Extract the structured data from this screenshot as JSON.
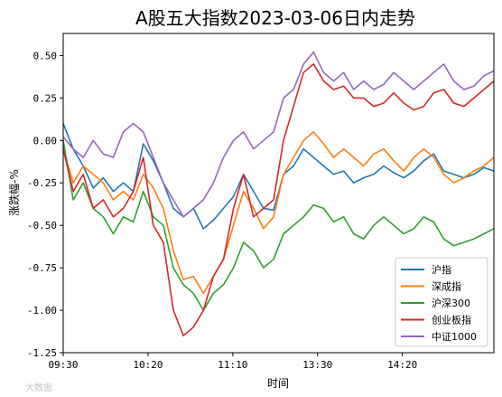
{
  "chart_data": {
    "type": "line",
    "title": "A股五大指数2023-03-06日内走势",
    "xlabel": "时间",
    "ylabel": "涨跌幅-%",
    "x_ticks": [
      "09:30",
      "10:20",
      "11:10",
      "13:30",
      "14:20"
    ],
    "y_ticks": [
      "0.50",
      "0.25",
      "0.00",
      "-0.25",
      "-0.50",
      "-0.75",
      "-1.00",
      "-1.25"
    ],
    "ylim": [
      -1.25,
      0.63
    ],
    "grid": false,
    "legend_position": "lower-right",
    "watermark": "大数据",
    "series": [
      {
        "name": "沪指",
        "color": "#1f77b4",
        "values": [
          0.1,
          -0.05,
          -0.15,
          -0.28,
          -0.22,
          -0.3,
          -0.25,
          -0.3,
          -0.02,
          -0.12,
          -0.25,
          -0.4,
          -0.45,
          -0.4,
          -0.52,
          -0.47,
          -0.4,
          -0.33,
          -0.2,
          -0.3,
          -0.4,
          -0.41,
          -0.2,
          -0.15,
          -0.05,
          -0.1,
          -0.15,
          -0.2,
          -0.18,
          -0.25,
          -0.22,
          -0.2,
          -0.15,
          -0.19,
          -0.22,
          -0.18,
          -0.12,
          -0.08,
          -0.18,
          -0.2,
          -0.22,
          -0.2,
          -0.16,
          -0.18
        ]
      },
      {
        "name": "深成指",
        "color": "#ff7f0e",
        "values": [
          -0.05,
          -0.25,
          -0.15,
          -0.2,
          -0.25,
          -0.35,
          -0.3,
          -0.35,
          -0.2,
          -0.28,
          -0.4,
          -0.65,
          -0.82,
          -0.8,
          -0.9,
          -0.8,
          -0.7,
          -0.5,
          -0.3,
          -0.4,
          -0.52,
          -0.45,
          -0.2,
          -0.1,
          0.0,
          0.05,
          -0.02,
          -0.1,
          -0.05,
          -0.1,
          -0.15,
          -0.08,
          -0.05,
          -0.12,
          -0.18,
          -0.1,
          -0.05,
          -0.1,
          -0.2,
          -0.25,
          -0.22,
          -0.18,
          -0.15,
          -0.1
        ]
      },
      {
        "name": "沪深300",
        "color": "#2ca02c",
        "values": [
          0.0,
          -0.35,
          -0.25,
          -0.4,
          -0.45,
          -0.55,
          -0.45,
          -0.48,
          -0.3,
          -0.45,
          -0.5,
          -0.75,
          -0.85,
          -0.9,
          -1.0,
          -0.9,
          -0.85,
          -0.75,
          -0.6,
          -0.65,
          -0.75,
          -0.7,
          -0.55,
          -0.5,
          -0.45,
          -0.38,
          -0.4,
          -0.48,
          -0.45,
          -0.55,
          -0.58,
          -0.5,
          -0.45,
          -0.5,
          -0.55,
          -0.52,
          -0.45,
          -0.48,
          -0.58,
          -0.62,
          -0.6,
          -0.58,
          -0.55,
          -0.52
        ]
      },
      {
        "name": "创业板指",
        "color": "#d62728",
        "values": [
          -0.05,
          -0.3,
          -0.2,
          -0.4,
          -0.35,
          -0.45,
          -0.4,
          -0.3,
          -0.1,
          -0.5,
          -0.6,
          -1.0,
          -1.15,
          -1.1,
          -1.0,
          -0.8,
          -0.7,
          -0.4,
          -0.2,
          -0.45,
          -0.4,
          -0.35,
          0.0,
          0.2,
          0.4,
          0.45,
          0.35,
          0.3,
          0.32,
          0.25,
          0.25,
          0.2,
          0.22,
          0.28,
          0.22,
          0.18,
          0.2,
          0.28,
          0.3,
          0.22,
          0.2,
          0.25,
          0.3,
          0.35
        ]
      },
      {
        "name": "中证1000",
        "color": "#9467bd",
        "values": [
          0.02,
          -0.05,
          -0.1,
          0.0,
          -0.08,
          -0.1,
          0.05,
          0.1,
          0.05,
          -0.1,
          -0.25,
          -0.35,
          -0.45,
          -0.4,
          -0.35,
          -0.25,
          -0.1,
          0.0,
          0.05,
          -0.05,
          0.0,
          0.05,
          0.25,
          0.3,
          0.45,
          0.52,
          0.4,
          0.35,
          0.4,
          0.3,
          0.35,
          0.3,
          0.33,
          0.4,
          0.35,
          0.3,
          0.35,
          0.4,
          0.45,
          0.35,
          0.3,
          0.32,
          0.38,
          0.41
        ]
      }
    ]
  }
}
